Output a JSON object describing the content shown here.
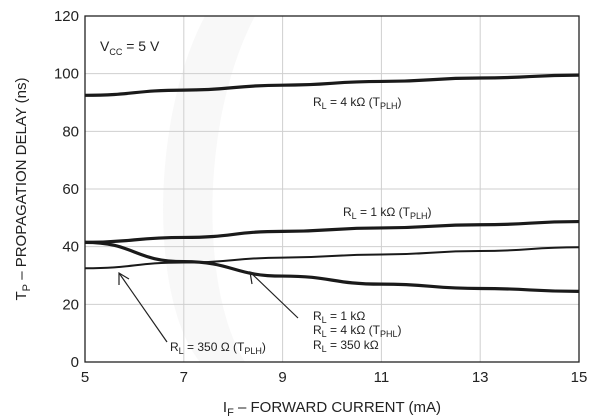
{
  "chart_data": {
    "type": "line",
    "xlabel": {
      "main": "I",
      "sub": "F",
      "rest": " – FORWARD CURRENT (mA)"
    },
    "ylabel": {
      "main": "T",
      "sub": "P",
      "rest": " – PROPAGATION DELAY (ns)"
    },
    "xlim": [
      5,
      15
    ],
    "ylim": [
      0,
      120
    ],
    "xticks": [
      "5",
      "7",
      "9",
      "11",
      "13",
      "15"
    ],
    "yticks": [
      "0",
      "20",
      "40",
      "60",
      "80",
      "100",
      "120"
    ],
    "grid": true,
    "condition": {
      "main": "V",
      "sub": "CC",
      "rest": "  = 5 V"
    },
    "series": [
      {
        "name": "RL = 4 kΩ (TPLH)",
        "x": [
          5,
          7,
          9,
          11,
          13,
          15
        ],
        "values": [
          92.5,
          94.3,
          96,
          97.3,
          98.5,
          99.5
        ]
      },
      {
        "name": "RL = 1 kΩ (TPLH)",
        "x": [
          5,
          7,
          9,
          11,
          13,
          15
        ],
        "values": [
          41.5,
          43.2,
          45.3,
          46.5,
          47.6,
          48.7
        ]
      },
      {
        "name": "RL = 350 Ω (TPLH)",
        "x": [
          5,
          7,
          9,
          11,
          13,
          15
        ],
        "values": [
          32.5,
          34.5,
          36.2,
          37.3,
          38.5,
          39.8
        ]
      },
      {
        "name": "RL = 1 kΩ, RL = 4 kΩ (TPHL), RL = 350 kΩ",
        "x": [
          5,
          7,
          9,
          11,
          13,
          15
        ],
        "values": [
          41.5,
          34.8,
          29.8,
          27,
          25.5,
          24.5
        ]
      }
    ],
    "annotations": {
      "r4k": {
        "pre": "R",
        "sub1": "L",
        "mid": " = 4 kΩ  (T",
        "sub2": "PLH",
        "post": ")"
      },
      "r1k": {
        "pre": "R",
        "sub1": "L",
        "mid": " = 1 kΩ  (T",
        "sub2": "PLH",
        "post": ")"
      },
      "r350": {
        "pre": "R",
        "sub1": "L",
        "mid": " = 350 Ω  (T",
        "sub2": "PLH",
        "post": ")"
      },
      "phl_line1": {
        "pre": "R",
        "sub1": "L",
        "mid": " = 1 kΩ"
      },
      "phl_line2": {
        "pre": "R",
        "sub1": "L",
        "mid": " = 4 kΩ  (T",
        "sub2": "PHL",
        "post": ")"
      },
      "phl_line3": {
        "pre": "R",
        "sub1": "L",
        "mid": " = 350 kΩ"
      }
    }
  }
}
